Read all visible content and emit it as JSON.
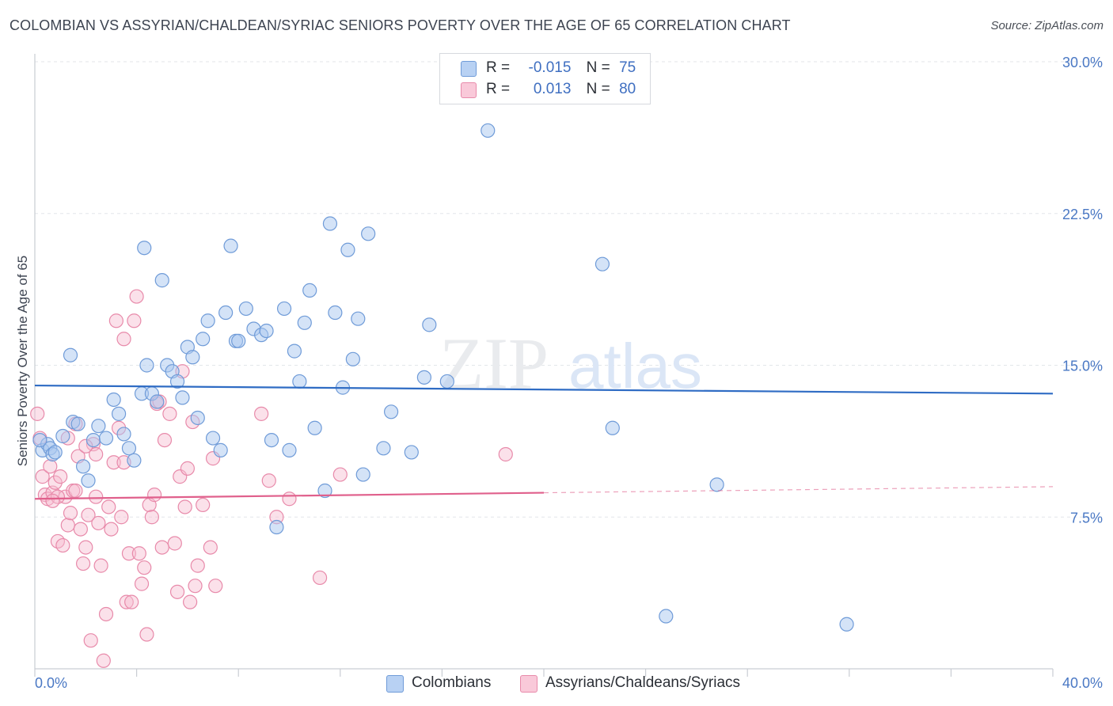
{
  "header": {
    "title": "COLOMBIAN VS ASSYRIAN/CHALDEAN/SYRIAC SENIORS POVERTY OVER THE AGE OF 65 CORRELATION CHART",
    "source": "Source: ZipAtlas.com"
  },
  "watermark": {
    "zip": "ZIP",
    "atlas": "atlas"
  },
  "legend": {
    "rows": [
      {
        "r_label": "R =",
        "r_value": "-0.015",
        "n_label": "N =",
        "n_value": "75"
      },
      {
        "r_label": "R =",
        "r_value": "0.013",
        "n_label": "N =",
        "n_value": "80"
      }
    ]
  },
  "bottom_legend": [
    "Colombians",
    "Assyrians/Chaldeans/Syriacs"
  ],
  "colors": {
    "blue_fill": "#aac8f0",
    "blue_stroke": "#6f9bd8",
    "blue_line": "#2f6cc4",
    "pink_fill": "#f6bcd0",
    "pink_stroke": "#e88aaa",
    "pink_line": "#e0608c",
    "tick_text": "#4a78c4",
    "grid": "#e3e6ea"
  },
  "chart_data": {
    "type": "scatter",
    "title": "COLOMBIAN VS ASSYRIAN/CHALDEAN/SYRIAC SENIORS POVERTY OVER THE AGE OF 65 CORRELATION CHART",
    "xlabel": "",
    "ylabel": "Seniors Poverty Over the Age of 65",
    "xlim": [
      0,
      40
    ],
    "ylim": [
      0,
      30
    ],
    "x_tick_labels": [
      "0.0%",
      "40.0%"
    ],
    "y_ticks": [
      7.5,
      15,
      22.5,
      30
    ],
    "y_tick_labels": [
      "7.5%",
      "15.0%",
      "22.5%",
      "30.0%"
    ],
    "grid": true,
    "legend_placement": "top-center",
    "series": [
      {
        "name": "Colombians",
        "R": -0.015,
        "N": 75,
        "trend": {
          "x": [
            0,
            40
          ],
          "y": [
            14.0,
            13.6
          ]
        },
        "points": [
          [
            0.3,
            10.8
          ],
          [
            0.5,
            11.1
          ],
          [
            0.6,
            10.9
          ],
          [
            0.7,
            10.6
          ],
          [
            0.8,
            10.7
          ],
          [
            1.1,
            11.5
          ],
          [
            1.4,
            15.5
          ],
          [
            1.5,
            12.2
          ],
          [
            1.7,
            12.1
          ],
          [
            1.9,
            10.0
          ],
          [
            2.1,
            9.3
          ],
          [
            2.3,
            11.3
          ],
          [
            2.5,
            12.0
          ],
          [
            2.8,
            11.4
          ],
          [
            3.1,
            13.3
          ],
          [
            3.3,
            12.6
          ],
          [
            3.5,
            11.6
          ],
          [
            3.7,
            10.9
          ],
          [
            3.9,
            10.3
          ],
          [
            4.2,
            13.6
          ],
          [
            4.3,
            20.8
          ],
          [
            4.4,
            15.0
          ],
          [
            4.6,
            13.6
          ],
          [
            4.8,
            13.2
          ],
          [
            5.0,
            19.2
          ],
          [
            5.2,
            15.0
          ],
          [
            5.4,
            14.7
          ],
          [
            5.6,
            14.2
          ],
          [
            5.8,
            13.4
          ],
          [
            6.0,
            15.9
          ],
          [
            6.2,
            15.4
          ],
          [
            6.4,
            12.4
          ],
          [
            6.6,
            16.3
          ],
          [
            6.8,
            17.2
          ],
          [
            7.0,
            11.4
          ],
          [
            7.3,
            10.8
          ],
          [
            7.5,
            17.6
          ],
          [
            7.7,
            20.9
          ],
          [
            7.9,
            16.2
          ],
          [
            8.0,
            16.2
          ],
          [
            8.3,
            17.8
          ],
          [
            8.6,
            16.8
          ],
          [
            8.9,
            16.5
          ],
          [
            9.1,
            16.7
          ],
          [
            9.3,
            11.3
          ],
          [
            9.5,
            7.0
          ],
          [
            9.8,
            17.8
          ],
          [
            10.0,
            10.8
          ],
          [
            10.2,
            15.7
          ],
          [
            10.4,
            14.2
          ],
          [
            10.6,
            17.1
          ],
          [
            10.8,
            18.7
          ],
          [
            11.0,
            11.9
          ],
          [
            11.4,
            8.8
          ],
          [
            11.6,
            22.0
          ],
          [
            11.8,
            17.6
          ],
          [
            12.1,
            13.9
          ],
          [
            12.3,
            20.7
          ],
          [
            12.5,
            15.3
          ],
          [
            12.7,
            17.3
          ],
          [
            12.9,
            9.6
          ],
          [
            13.1,
            21.5
          ],
          [
            13.7,
            10.9
          ],
          [
            14.0,
            12.7
          ],
          [
            14.8,
            10.7
          ],
          [
            15.3,
            14.4
          ],
          [
            15.5,
            17.0
          ],
          [
            16.2,
            14.2
          ],
          [
            17.8,
            26.6
          ],
          [
            22.3,
            20.0
          ],
          [
            22.7,
            11.9
          ],
          [
            24.8,
            2.6
          ],
          [
            26.8,
            9.1
          ],
          [
            31.9,
            2.2
          ],
          [
            0.2,
            11.3
          ]
        ]
      },
      {
        "name": "Assyrians/Chaldeans/Syriacs",
        "R": 0.013,
        "N": 80,
        "trend": {
          "x": [
            0,
            20
          ],
          "y": [
            8.4,
            8.7
          ]
        },
        "trend_dashed": {
          "x": [
            20,
            40
          ],
          "y": [
            8.7,
            9.0
          ]
        },
        "points": [
          [
            0.1,
            12.6
          ],
          [
            0.2,
            11.4
          ],
          [
            0.3,
            9.5
          ],
          [
            0.4,
            8.6
          ],
          [
            0.5,
            8.4
          ],
          [
            0.6,
            10.0
          ],
          [
            0.7,
            8.7
          ],
          [
            0.8,
            9.2
          ],
          [
            0.9,
            6.3
          ],
          [
            1.0,
            9.5
          ],
          [
            1.1,
            6.1
          ],
          [
            1.2,
            8.5
          ],
          [
            1.3,
            7.1
          ],
          [
            1.4,
            7.7
          ],
          [
            1.5,
            8.8
          ],
          [
            1.6,
            12.1
          ],
          [
            1.7,
            10.5
          ],
          [
            1.8,
            6.9
          ],
          [
            1.9,
            5.2
          ],
          [
            2.0,
            6.0
          ],
          [
            2.1,
            7.6
          ],
          [
            2.2,
            1.4
          ],
          [
            2.3,
            11.1
          ],
          [
            2.4,
            10.6
          ],
          [
            2.5,
            7.2
          ],
          [
            2.6,
            5.1
          ],
          [
            2.7,
            0.4
          ],
          [
            2.8,
            2.7
          ],
          [
            2.9,
            8.0
          ],
          [
            3.0,
            6.9
          ],
          [
            3.1,
            10.2
          ],
          [
            3.2,
            17.2
          ],
          [
            3.3,
            11.9
          ],
          [
            3.4,
            7.5
          ],
          [
            3.5,
            16.3
          ],
          [
            3.6,
            3.3
          ],
          [
            3.7,
            5.7
          ],
          [
            3.8,
            3.3
          ],
          [
            3.9,
            17.2
          ],
          [
            4.0,
            18.4
          ],
          [
            4.1,
            5.7
          ],
          [
            4.2,
            4.2
          ],
          [
            4.3,
            5.0
          ],
          [
            4.4,
            1.7
          ],
          [
            4.5,
            8.1
          ],
          [
            4.6,
            7.5
          ],
          [
            4.8,
            13.1
          ],
          [
            4.9,
            13.2
          ],
          [
            5.0,
            6.0
          ],
          [
            5.1,
            11.3
          ],
          [
            5.3,
            12.6
          ],
          [
            5.5,
            6.2
          ],
          [
            5.6,
            3.8
          ],
          [
            5.7,
            9.5
          ],
          [
            5.8,
            14.7
          ],
          [
            5.9,
            8.0
          ],
          [
            6.0,
            9.9
          ],
          [
            6.1,
            3.3
          ],
          [
            6.2,
            12.2
          ],
          [
            6.3,
            4.1
          ],
          [
            6.4,
            5.1
          ],
          [
            6.6,
            8.1
          ],
          [
            6.9,
            6.0
          ],
          [
            7.0,
            10.4
          ],
          [
            7.1,
            4.1
          ],
          [
            8.9,
            12.6
          ],
          [
            9.2,
            9.3
          ],
          [
            9.5,
            7.5
          ],
          [
            10.0,
            8.4
          ],
          [
            11.2,
            4.5
          ],
          [
            12.0,
            9.6
          ],
          [
            18.5,
            10.6
          ],
          [
            1.6,
            8.8
          ],
          [
            0.9,
            8.5
          ],
          [
            2.0,
            11.0
          ],
          [
            3.5,
            10.2
          ],
          [
            4.7,
            8.6
          ],
          [
            1.3,
            11.4
          ],
          [
            0.7,
            8.3
          ],
          [
            2.4,
            8.5
          ]
        ]
      }
    ]
  }
}
